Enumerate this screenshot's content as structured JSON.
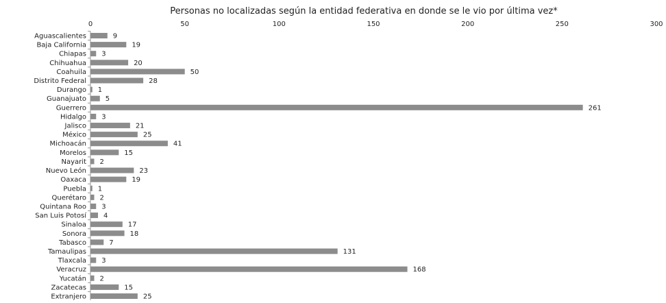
{
  "chart_data": {
    "type": "bar",
    "orientation": "horizontal",
    "title": "Personas no localizadas según la entidad federativa en donde se le vio por última vez*",
    "xlabel": "",
    "ylabel": "",
    "xlim": [
      0,
      300
    ],
    "x_ticks": [
      0,
      50,
      100,
      150,
      200,
      250,
      300
    ],
    "x_axis_position": "top",
    "grid": false,
    "legend": "none",
    "bar_color": "#8c8c8c",
    "text_color": "#222222",
    "categories": [
      "Aguascalientes",
      "Baja California",
      "Chiapas",
      "Chihuahua",
      "Coahuila",
      "Distrito Federal",
      "Durango",
      "Guanajuato",
      "Guerrero",
      "Hidalgo",
      "Jalisco",
      "México",
      "Michoacán",
      "Morelos",
      "Nayarit",
      "Nuevo León",
      "Oaxaca",
      "Puebla",
      "Querétaro",
      "Quintana Roo",
      "San Luis Potosí",
      "Sinaloa",
      "Sonora",
      "Tabasco",
      "Tamaulipas",
      "Tlaxcala",
      "Veracruz",
      "Yucatán",
      "Zacatecas",
      "Extranjero"
    ],
    "values": [
      9,
      19,
      3,
      20,
      50,
      28,
      1,
      5,
      261,
      3,
      21,
      25,
      41,
      15,
      2,
      23,
      19,
      1,
      2,
      3,
      4,
      17,
      18,
      7,
      131,
      3,
      168,
      2,
      15,
      25
    ]
  }
}
